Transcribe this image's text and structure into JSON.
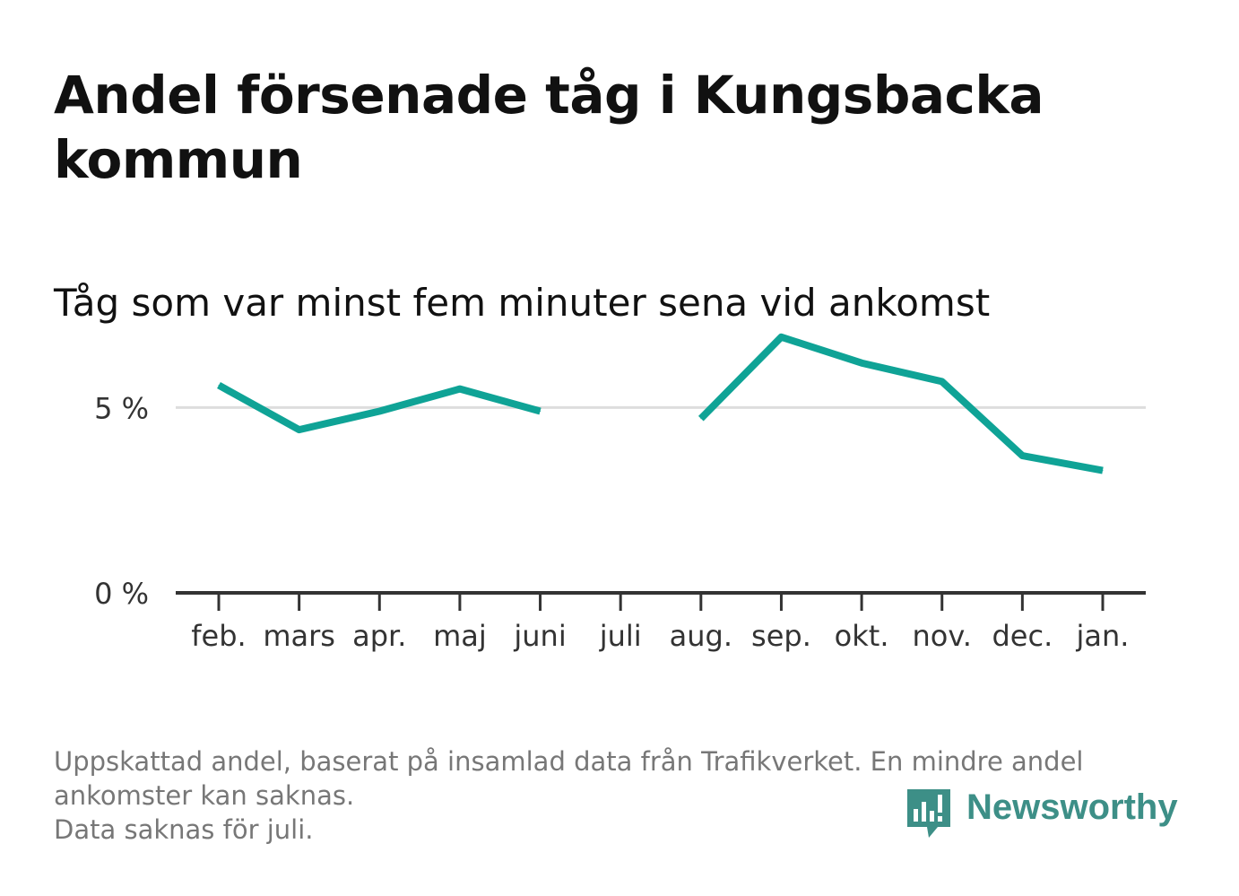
{
  "title": "Andel försenade tåg i Kungsbacka kommun",
  "subtitle": "Tåg som var minst fem minuter sena vid ankomst",
  "footnote": [
    "Uppskattad andel, baserat på insamlad data från Trafikverket. En mindre andel",
    "ankomster kan saknas.",
    "Data saknas för juli."
  ],
  "brand": "Newsworthy",
  "colors": {
    "line": "#0fa396",
    "axis": "#333333",
    "grid": "#dddddd",
    "brand": "#3d8f87"
  },
  "chart_data": {
    "type": "line",
    "categories": [
      "feb.",
      "mars",
      "apr.",
      "maj",
      "juni",
      "juli",
      "aug.",
      "sep.",
      "okt.",
      "nov.",
      "dec.",
      "jan."
    ],
    "series": [
      {
        "values": [
          5.6,
          4.4,
          4.9,
          5.5,
          4.9,
          null,
          4.7,
          6.9,
          6.2,
          5.7,
          3.7,
          3.3
        ]
      }
    ],
    "yticks": [
      0,
      5
    ],
    "ytick_labels": [
      "0 %",
      "5 %"
    ],
    "ylim": [
      0,
      7.5
    ],
    "grid": true,
    "xlabel": "",
    "ylabel": ""
  }
}
